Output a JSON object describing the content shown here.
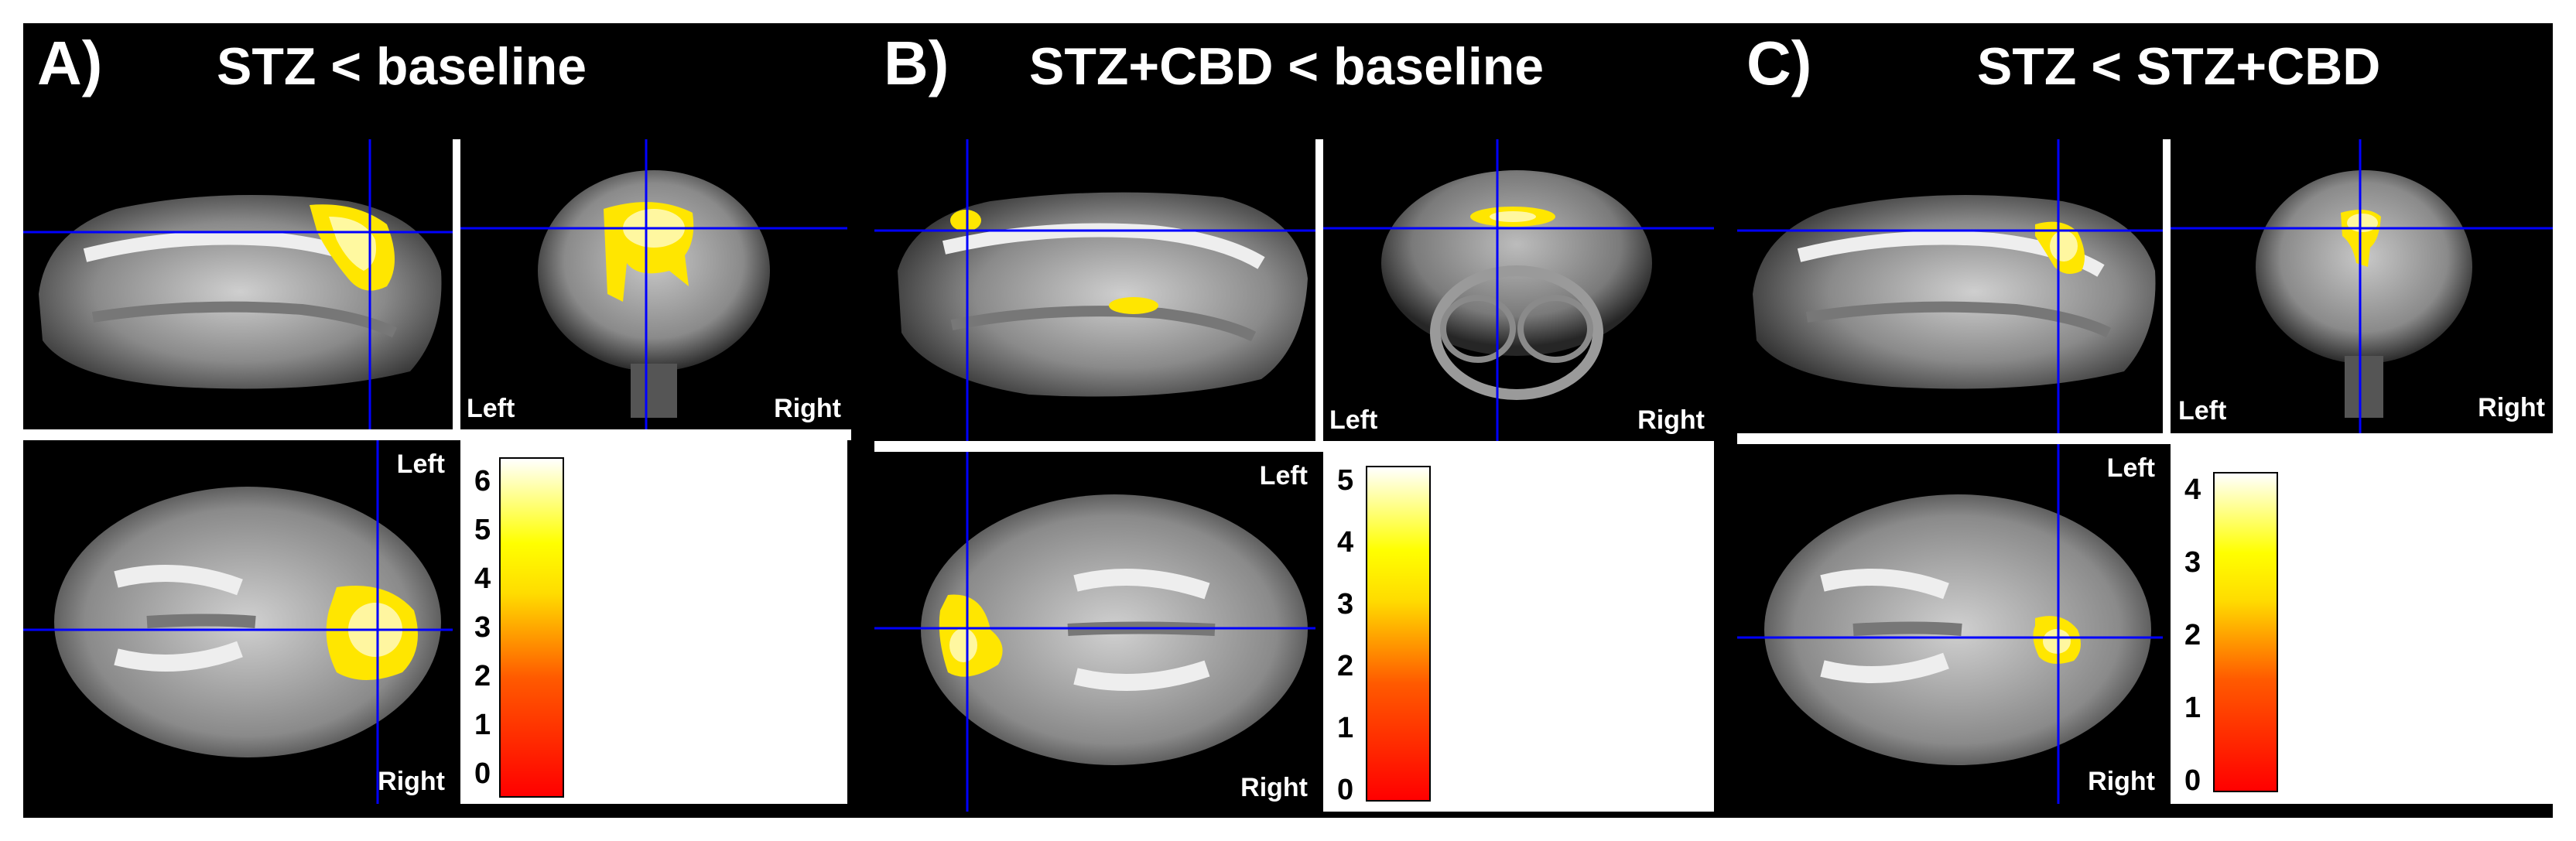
{
  "panels": [
    {
      "label": "A)",
      "title": "STZ < baseline",
      "orient": {
        "coronal_left": "Left",
        "coronal_right": "Right",
        "axial_top": "Left",
        "axial_bottom": "Right"
      },
      "colorbar": {
        "ticks": [
          "0",
          "1",
          "2",
          "3",
          "4",
          "5",
          "6"
        ]
      }
    },
    {
      "label": "B)",
      "title": "STZ+CBD < baseline",
      "orient": {
        "coronal_left": "Left",
        "coronal_right": "Right",
        "axial_top": "Left",
        "axial_bottom": "Right"
      },
      "colorbar": {
        "ticks": [
          "0",
          "1",
          "2",
          "3",
          "4",
          "5"
        ]
      }
    },
    {
      "label": "C)",
      "title": "STZ < STZ+CBD",
      "orient": {
        "coronal_left": "Left",
        "coronal_right": "Right",
        "axial_top": "Left",
        "axial_bottom": "Right"
      },
      "colorbar": {
        "ticks": [
          "0",
          "1",
          "2",
          "3",
          "4"
        ]
      }
    }
  ],
  "colors": {
    "crosshair": "#0000ff",
    "frame": "#000000",
    "activation": "#ffe600"
  }
}
